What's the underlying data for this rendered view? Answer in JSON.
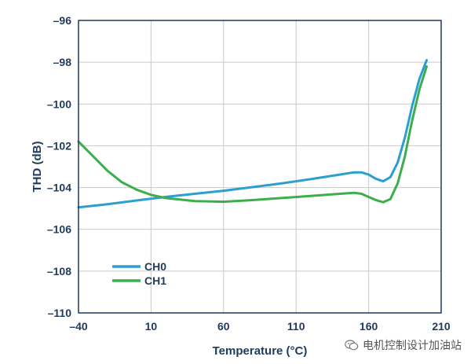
{
  "chart_data": {
    "type": "line",
    "xlabel": "Temperature (°C)",
    "ylabel": "THD (dB)",
    "xlim": [
      -40,
      210
    ],
    "ylim": [
      -110,
      -96
    ],
    "xticks": [
      -40,
      10,
      60,
      110,
      160,
      210
    ],
    "yticks": [
      -96,
      -98,
      -100,
      -102,
      -104,
      -106,
      -108,
      -110
    ],
    "xtick_labels": [
      "–40",
      "10",
      "60",
      "110",
      "160",
      "210"
    ],
    "ytick_labels": [
      "–96",
      "–98",
      "–100",
      "–102",
      "–104",
      "–106",
      "–108",
      "–110"
    ],
    "grid": true,
    "legend_position": "bottom-left",
    "series": [
      {
        "name": "CH0",
        "color": "#2a9fd0",
        "x": [
          -40,
          -20,
          0,
          20,
          40,
          60,
          80,
          100,
          120,
          140,
          150,
          155,
          160,
          165,
          170,
          175,
          180,
          185,
          190,
          195,
          200
        ],
        "y": [
          -104.95,
          -104.8,
          -104.62,
          -104.45,
          -104.3,
          -104.15,
          -103.98,
          -103.8,
          -103.6,
          -103.38,
          -103.27,
          -103.27,
          -103.38,
          -103.58,
          -103.7,
          -103.5,
          -102.8,
          -101.6,
          -100.1,
          -98.8,
          -97.9
        ]
      },
      {
        "name": "CH1",
        "color": "#3cae4c",
        "x": [
          -40,
          -30,
          -20,
          -10,
          0,
          10,
          20,
          40,
          60,
          80,
          100,
          120,
          140,
          150,
          155,
          160,
          165,
          170,
          175,
          180,
          185,
          190,
          195,
          200
        ],
        "y": [
          -101.8,
          -102.5,
          -103.2,
          -103.75,
          -104.1,
          -104.35,
          -104.5,
          -104.65,
          -104.68,
          -104.6,
          -104.5,
          -104.4,
          -104.3,
          -104.25,
          -104.3,
          -104.45,
          -104.6,
          -104.7,
          -104.55,
          -103.8,
          -102.5,
          -100.8,
          -99.3,
          -98.2
        ]
      }
    ]
  },
  "watermark": {
    "text": "电机控制设计加油站",
    "icon": "wechat-icon"
  }
}
